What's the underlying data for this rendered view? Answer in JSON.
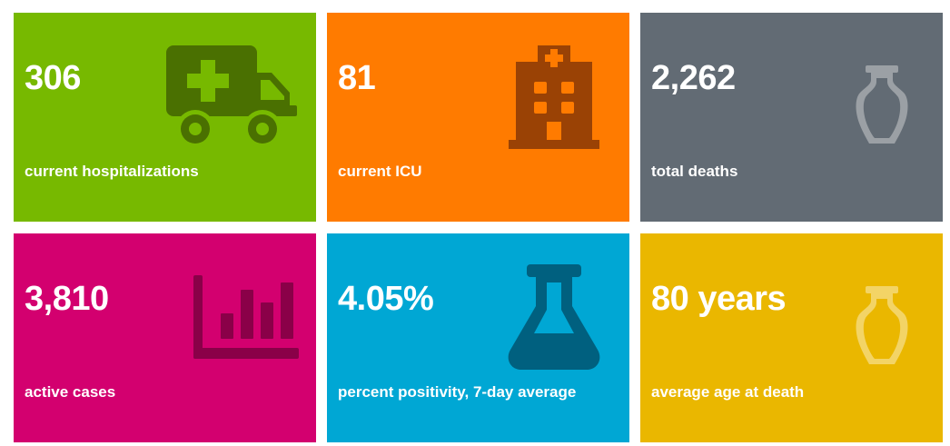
{
  "tiles": [
    {
      "id": "hospitalizations",
      "value": "306",
      "label": "current hospitalizations",
      "icon": "ambulance-icon",
      "background": "#77b900",
      "icon_color": "#4a7001"
    },
    {
      "id": "icu",
      "value": "81",
      "label": "current ICU",
      "icon": "hospital-building-icon",
      "background": "#ff7b00",
      "icon_color": "#9a4205"
    },
    {
      "id": "deaths",
      "value": "2,262",
      "label": "total deaths",
      "icon": "urn-icon",
      "background": "#626b74",
      "icon_color": "#9ba0a5"
    },
    {
      "id": "active",
      "value": "3,810",
      "label": "active cases",
      "icon": "bar-chart-icon",
      "background": "#d3006f",
      "icon_color": "#8a0048"
    },
    {
      "id": "positivity",
      "value": "4.05%",
      "label": "percent positivity, 7-day average",
      "icon": "flask-icon",
      "background": "#00a7d4",
      "icon_color": "#00607f"
    },
    {
      "id": "age",
      "value": "80 years",
      "label": "average age at death",
      "icon": "urn-icon",
      "background": "#eab700",
      "icon_color": "#f3d466"
    }
  ]
}
